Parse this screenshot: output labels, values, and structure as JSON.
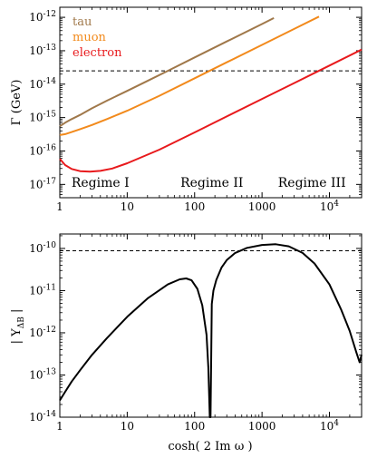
{
  "chart_data": [
    {
      "type": "line",
      "ylabel": "Γ (GeV)",
      "xlabel": "",
      "xscale": "log",
      "yscale": "log",
      "xlim": [
        1,
        30000
      ],
      "ylim": [
        4e-18,
        2e-12
      ],
      "x_ticks": [
        {
          "value": 1,
          "label": "1"
        },
        {
          "value": 10,
          "label": "10"
        },
        {
          "value": 100,
          "label": "100"
        },
        {
          "value": 1000,
          "label": "1000"
        },
        {
          "value": 10000,
          "label": "10^4"
        }
      ],
      "y_ticks": [
        {
          "value": 1e-12,
          "label": "10^-12"
        },
        {
          "value": 1e-13,
          "label": "10^-13"
        },
        {
          "value": 1e-14,
          "label": "10^-14"
        },
        {
          "value": 1e-15,
          "label": "10^-15"
        },
        {
          "value": 1e-16,
          "label": "10^-16"
        },
        {
          "value": 1e-17,
          "label": "10^-17"
        }
      ],
      "legend_placement": "top-left",
      "series": [
        {
          "name": "tau",
          "color": "#a0784a",
          "x": [
            1,
            1.2,
            1.5,
            2,
            3,
            5,
            10,
            20,
            40,
            100,
            300,
            1000,
            1500
          ],
          "y": [
            5.5e-16,
            7e-16,
            9e-16,
            1.2e-15,
            1.9e-15,
            3.2e-15,
            6.3e-15,
            1.25e-14,
            2.5e-14,
            6.3e-14,
            1.9e-13,
            6.3e-13,
            9.5e-13
          ]
        },
        {
          "name": "muon",
          "color": "#f28a1c",
          "x": [
            1,
            1.2,
            1.5,
            2,
            3,
            5,
            10,
            30,
            100,
            300,
            1000,
            3000,
            7000
          ],
          "y": [
            3e-16,
            3.2e-16,
            3.7e-16,
            4.5e-16,
            6e-16,
            9e-16,
            1.6e-15,
            4.5e-15,
            1.5e-14,
            4.5e-14,
            1.5e-13,
            4.5e-13,
            1.05e-12
          ]
        },
        {
          "name": "electron",
          "color": "#e8191c",
          "x": [
            1,
            1.2,
            1.5,
            2,
            2.8,
            4,
            6,
            10,
            30,
            100,
            300,
            1000,
            3000,
            10000,
            30000
          ],
          "y": [
            5.8e-17,
            3.8e-17,
            2.9e-17,
            2.5e-17,
            2.4e-17,
            2.55e-17,
            3e-17,
            4.3e-17,
            1.1e-16,
            3.6e-16,
            1.08e-15,
            3.6e-15,
            1.08e-14,
            3.6e-14,
            1.08e-13
          ]
        }
      ],
      "reference_line": {
        "y": 2.5e-14,
        "style": "dashed"
      },
      "annotations": [
        {
          "text": "Regime I",
          "x": 4
        },
        {
          "text": "Regime II",
          "x": 180
        },
        {
          "text": "Regime III",
          "x": 5500
        }
      ]
    },
    {
      "type": "line",
      "ylabel": "| Y_ΔB |",
      "xlabel": "cosh( 2 Im ω )",
      "xscale": "log",
      "yscale": "log",
      "xlim": [
        1,
        30000
      ],
      "ylim": [
        1e-14,
        2.2e-10
      ],
      "x_ticks": [
        {
          "value": 1,
          "label": "1"
        },
        {
          "value": 10,
          "label": "10"
        },
        {
          "value": 100,
          "label": "100"
        },
        {
          "value": 1000,
          "label": "1000"
        },
        {
          "value": 10000,
          "label": "10^4"
        }
      ],
      "y_ticks": [
        {
          "value": 1e-10,
          "label": "10^-10"
        },
        {
          "value": 1e-11,
          "label": "10^-11"
        },
        {
          "value": 1e-12,
          "label": "10^-12"
        },
        {
          "value": 1e-13,
          "label": "10^-13"
        },
        {
          "value": 1e-14,
          "label": "10^-14"
        }
      ],
      "series": [
        {
          "color": "#000000",
          "x": [
            1,
            1.2,
            1.5,
            2,
            3,
            5,
            10,
            20,
            40,
            60,
            75,
            90,
            110,
            130,
            150,
            160,
            168,
            172,
            176,
            180,
            190,
            210,
            250,
            300,
            400,
            600,
            1000,
            1600,
            2500,
            4000,
            6000,
            10000,
            15000,
            20000,
            25000,
            28000,
            30000
          ],
          "y": [
            2.5e-14,
            4e-14,
            7e-14,
            1.3e-13,
            3e-13,
            7.5e-13,
            2.4e-12,
            6.5e-12,
            1.4e-11,
            1.85e-11,
            1.95e-11,
            1.75e-11,
            1.1e-11,
            4.5e-12,
            9e-13,
            1.5e-13,
            1e-14,
            1e-14,
            2e-13,
            4.8e-12,
            1e-11,
            1.8e-11,
            3.5e-11,
            5.3e-11,
            7.8e-11,
            1.03e-10,
            1.21e-10,
            1.26e-10,
            1.12e-10,
            7.8e-11,
            4.4e-11,
            1.4e-11,
            3.5e-12,
            1.1e-12,
            3.5e-13,
            2e-13,
            3e-13
          ]
        }
      ],
      "reference_line": {
        "y": 8.8e-11,
        "style": "dashed"
      }
    }
  ]
}
